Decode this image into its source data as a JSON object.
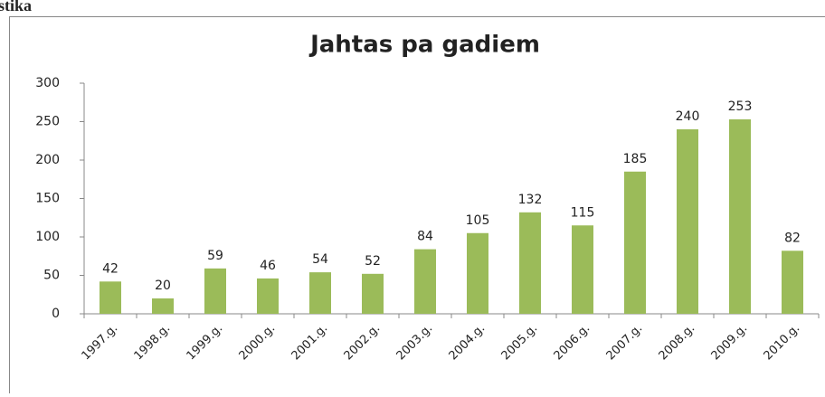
{
  "heading": "stika",
  "chart_data": {
    "type": "bar",
    "title": "Jahtas pa gadiem",
    "categories": [
      "1997.g.",
      "1998.g.",
      "1999.g.",
      "2000.g.",
      "2001.g.",
      "2002.g.",
      "2003.g.",
      "2004.g.",
      "2005.g.",
      "2006.g.",
      "2007.g.",
      "2008.g.",
      "2009.g.",
      "2010.g."
    ],
    "values": [
      42,
      20,
      59,
      46,
      54,
      52,
      84,
      105,
      132,
      115,
      185,
      240,
      253,
      82
    ],
    "color": "#9bbb59",
    "ylim": [
      0,
      300
    ],
    "yticks": [
      0,
      50,
      100,
      150,
      200,
      250,
      300
    ],
    "grid": false
  }
}
